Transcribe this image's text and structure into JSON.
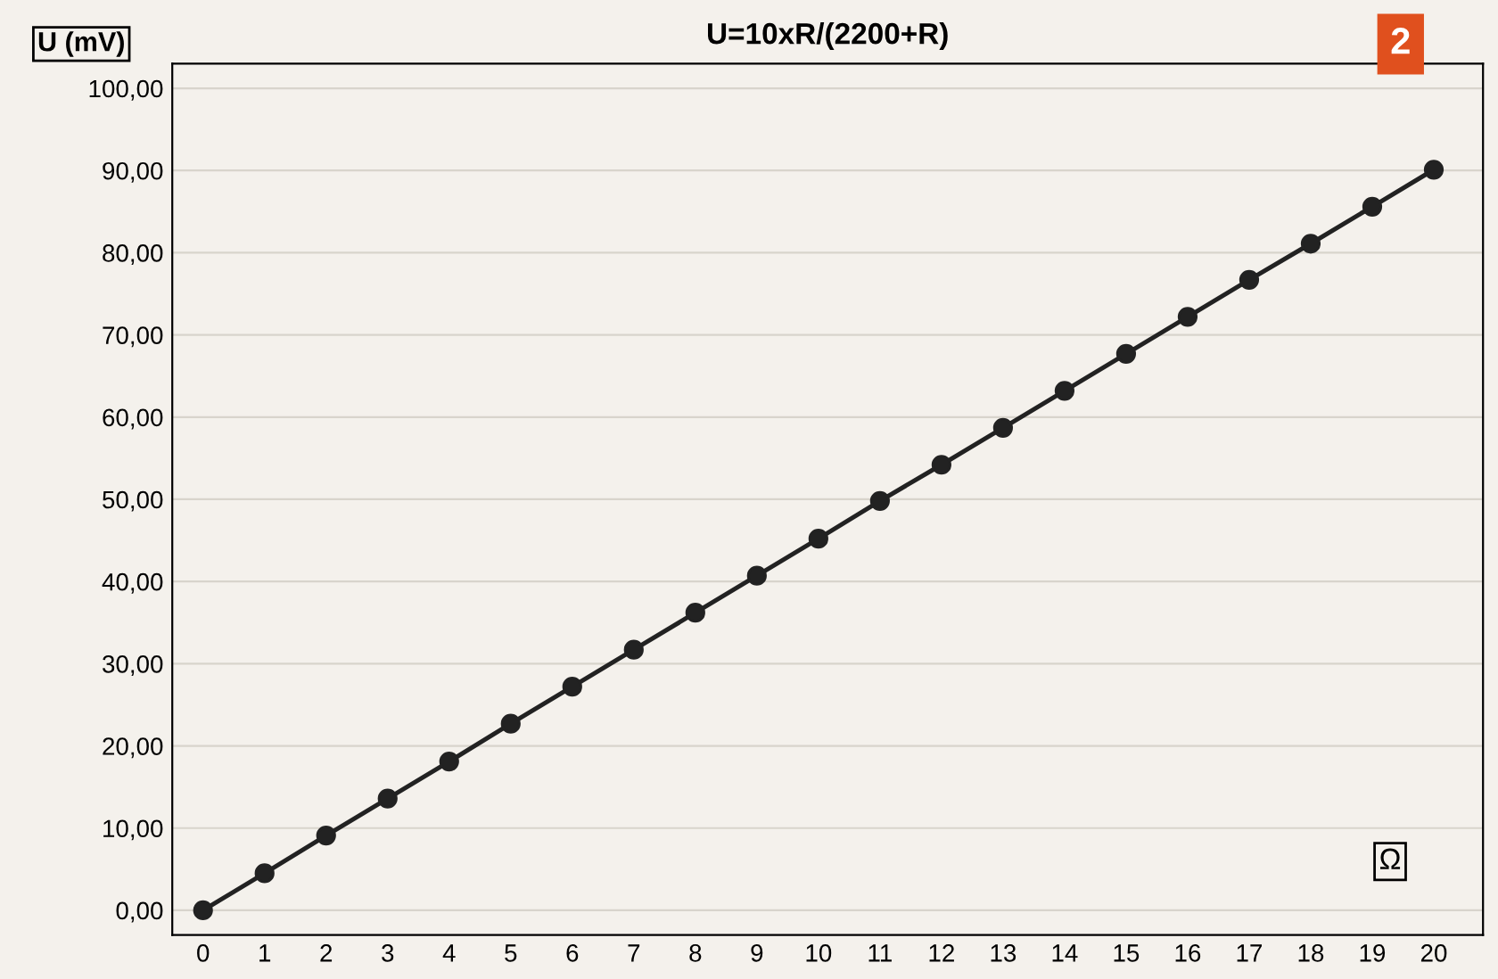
{
  "chart_data": {
    "type": "line",
    "title": "U=10xR/(2200+R)",
    "ylabel": "U (mV)",
    "xlabel": "Ω",
    "annotations": [
      "2"
    ],
    "x": [
      0,
      1,
      2,
      3,
      4,
      5,
      6,
      7,
      8,
      9,
      10,
      11,
      12,
      13,
      14,
      15,
      16,
      17,
      18,
      19,
      20
    ],
    "series": [
      {
        "color": "#222222",
        "values": [
          0,
          4.5,
          9.1,
          13.6,
          18.1,
          22.7,
          27.2,
          31.7,
          36.2,
          40.7,
          45.2,
          49.8,
          54.2,
          58.7,
          63.2,
          67.7,
          72.2,
          76.7,
          81.1,
          85.6,
          90.1
        ]
      }
    ],
    "xlim": [
      -0.5,
      20.8
    ],
    "xticks": [
      0,
      1,
      2,
      3,
      4,
      5,
      6,
      7,
      8,
      9,
      10,
      11,
      12,
      13,
      14,
      15,
      16,
      17,
      18,
      19,
      20
    ],
    "ylim": [
      -3,
      103
    ],
    "yticks": [
      {
        "value": 0,
        "label": "0,00"
      },
      {
        "value": 10,
        "label": "10,00"
      },
      {
        "value": 20,
        "label": "20,00"
      },
      {
        "value": 30,
        "label": "30,00"
      },
      {
        "value": 40,
        "label": "40,00"
      },
      {
        "value": 50,
        "label": "50,00"
      },
      {
        "value": 60,
        "label": "60,00"
      },
      {
        "value": 70,
        "label": "70,00"
      },
      {
        "value": 80,
        "label": "80,00"
      },
      {
        "value": 90,
        "label": "90,00"
      },
      {
        "value": 100,
        "label": "100,00"
      }
    ],
    "grid": "y",
    "marker": "circle",
    "line_style": "solid"
  }
}
